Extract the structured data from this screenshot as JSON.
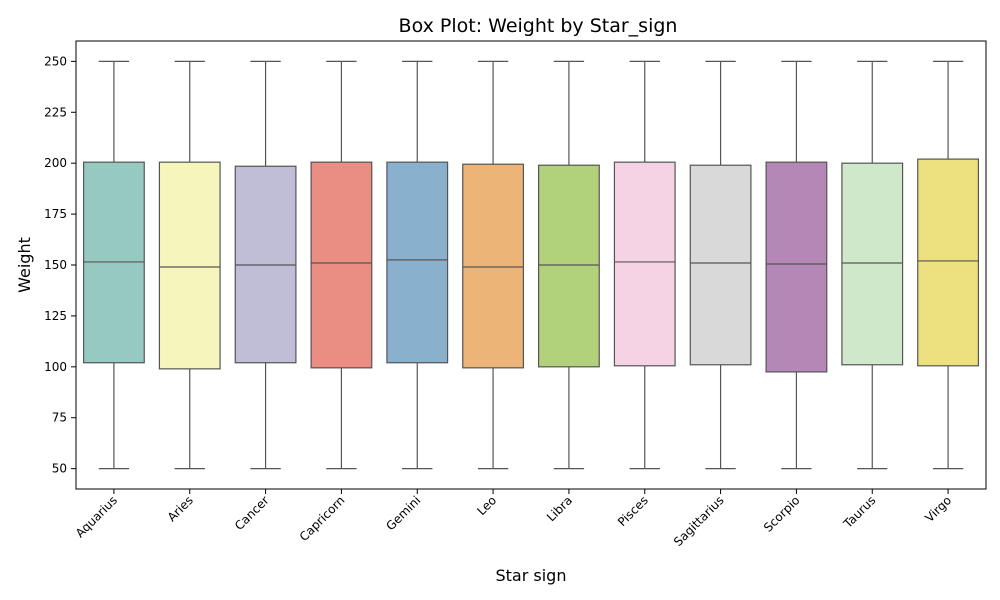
{
  "chart_data": {
    "type": "box",
    "title": "Box Plot: Weight by Star_sign",
    "xlabel": "Star sign",
    "ylabel": "Weight",
    "ylim": [
      40,
      260
    ],
    "yticks": [
      50,
      75,
      100,
      125,
      150,
      175,
      200,
      225,
      250
    ],
    "grid": false,
    "categories": [
      "Aquarius",
      "Aries",
      "Cancer",
      "Capricorn",
      "Gemini",
      "Leo",
      "Libra",
      "Pisces",
      "Sagittarius",
      "Scorpio",
      "Taurus",
      "Virgo"
    ],
    "boxes": [
      {
        "min": 50,
        "q1": 102,
        "median": 151.5,
        "q3": 200.5,
        "max": 250
      },
      {
        "min": 50,
        "q1": 99,
        "median": 149,
        "q3": 200.5,
        "max": 250
      },
      {
        "min": 50,
        "q1": 102,
        "median": 150,
        "q3": 198.5,
        "max": 250
      },
      {
        "min": 50,
        "q1": 99.5,
        "median": 151,
        "q3": 200.5,
        "max": 250
      },
      {
        "min": 50,
        "q1": 102,
        "median": 152.5,
        "q3": 200.5,
        "max": 250
      },
      {
        "min": 50,
        "q1": 99.5,
        "median": 149,
        "q3": 199.5,
        "max": 250
      },
      {
        "min": 50,
        "q1": 100,
        "median": 150,
        "q3": 199,
        "max": 250
      },
      {
        "min": 50,
        "q1": 100.5,
        "median": 151.5,
        "q3": 200.5,
        "max": 250
      },
      {
        "min": 50,
        "q1": 101,
        "median": 151,
        "q3": 199,
        "max": 250
      },
      {
        "min": 50,
        "q1": 97.5,
        "median": 150.5,
        "q3": 200.5,
        "max": 250
      },
      {
        "min": 50,
        "q1": 101,
        "median": 151,
        "q3": 200,
        "max": 250
      },
      {
        "min": 50,
        "q1": 100.5,
        "median": 152,
        "q3": 202,
        "max": 250
      }
    ],
    "colors": [
      "#96cac1",
      "#f6f6bc",
      "#c0bdd6",
      "#ea8e83",
      "#89b0cc",
      "#ecb476",
      "#b1d17a",
      "#f5d3e4",
      "#d9d9d9",
      "#b587b6",
      "#d0e8ca",
      "#ede07f"
    ],
    "line_color": "#555555"
  }
}
